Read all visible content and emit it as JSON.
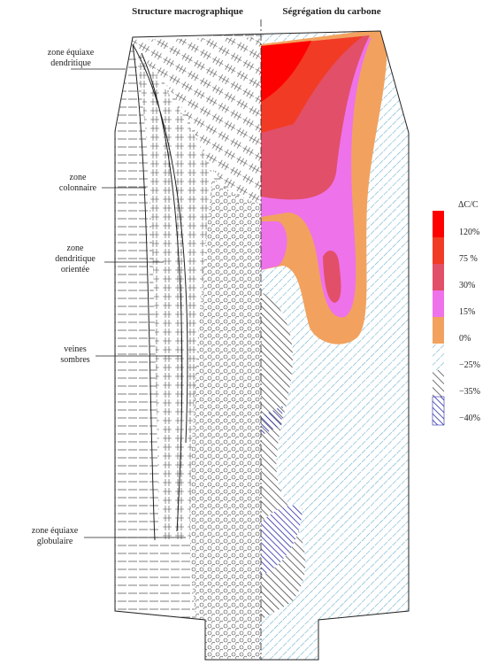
{
  "titles": {
    "left": "Structure macrographique",
    "right": "Ségrégation du carbone"
  },
  "labels": [
    {
      "lines": [
        "zone équiaxe",
        "dendritique"
      ]
    },
    {
      "lines": [
        "zone",
        "colonnaire"
      ]
    },
    {
      "lines": [
        "zone",
        "dendritique",
        "orientée"
      ]
    },
    {
      "lines": [
        "veines",
        "sombres"
      ]
    },
    {
      "lines": [
        "zone équiaxe",
        "globulaire"
      ]
    }
  ],
  "legend": {
    "title": "ΔC/C",
    "items": [
      "120%",
      "75 %",
      "30%",
      "15%",
      "0%",
      "−25%",
      "−35%",
      "−40%"
    ]
  }
}
